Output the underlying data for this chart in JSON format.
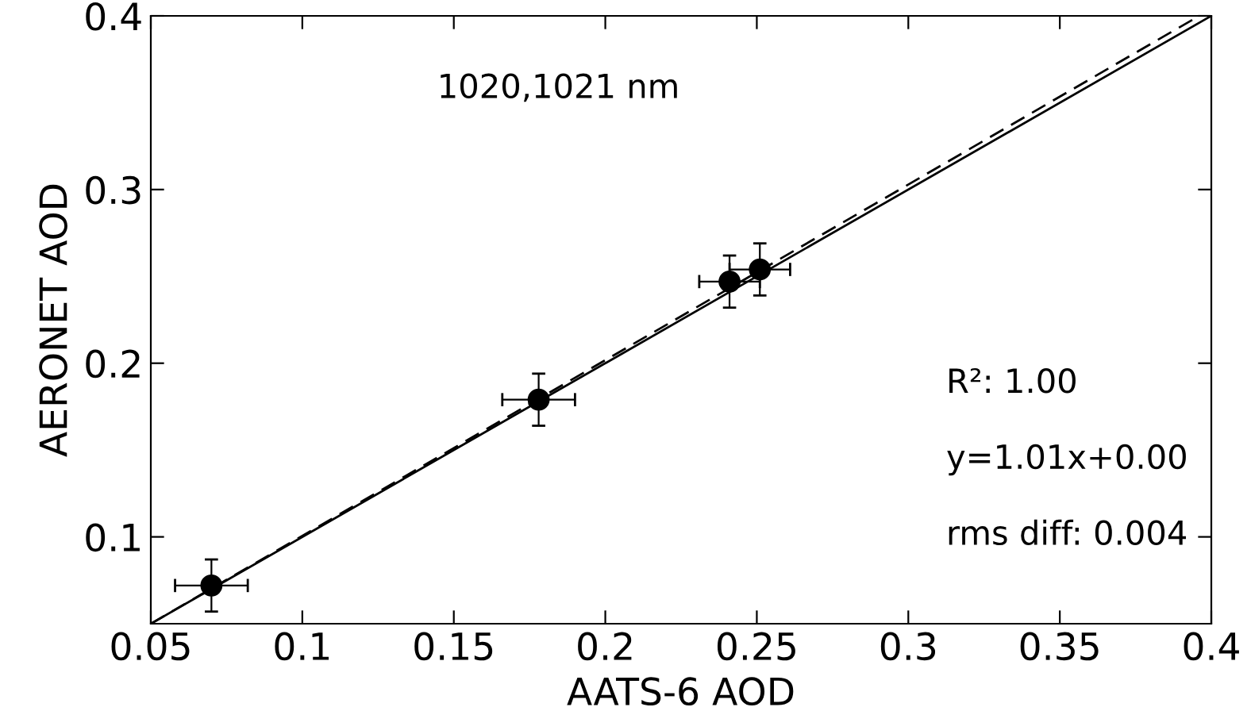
{
  "chart_data": {
    "type": "scatter",
    "xlabel": "AATS-6 AOD",
    "ylabel": "AERONET AOD",
    "xlim": [
      0.05,
      0.4
    ],
    "xticks": [
      0.05,
      0.1,
      0.15,
      0.2,
      0.25,
      0.3,
      0.35,
      0.4
    ],
    "ylim": [
      0.05,
      0.4
    ],
    "yticks": [
      0.1,
      0.2,
      0.3,
      0.4
    ],
    "grid": false,
    "marker": "circle",
    "series": [
      {
        "color": "#000000",
        "x": [
          0.07,
          0.178,
          0.241,
          0.251
        ],
        "values": [
          0.072,
          0.179,
          0.247,
          0.254
        ],
        "errors": [
          0.015,
          0.015,
          0.015,
          0.015
        ],
        "xerrors": [
          0.012,
          0.012,
          0.01,
          0.01
        ]
      },
      {
        "type": "line",
        "color": "#000000",
        "line_style": "solid",
        "marker": "none",
        "x": [
          0.05,
          0.4
        ],
        "values": [
          0.05,
          0.4
        ]
      },
      {
        "type": "line",
        "color": "#000000",
        "line_style": "dashed",
        "marker": "none",
        "x": [
          0.05,
          0.396
        ],
        "values": [
          0.05,
          0.4
        ]
      }
    ],
    "annotations": [
      "1020,1021 nm",
      "R²: 1.00",
      "y=1.01x+0.00",
      "rms diff: 0.004"
    ]
  }
}
